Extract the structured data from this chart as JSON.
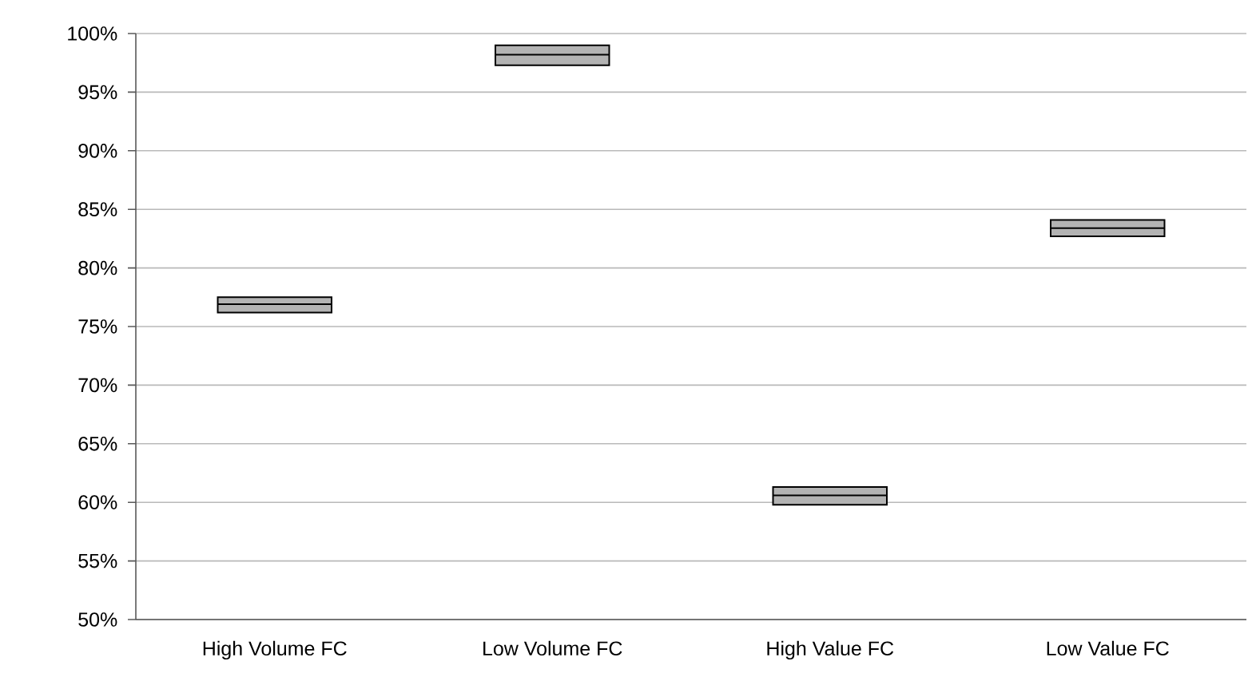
{
  "chart_data": {
    "type": "box",
    "categories": [
      "High Volume FC",
      "Low Volume FC",
      "High Value FC",
      "Low Value FC"
    ],
    "boxes": [
      {
        "low": 76.2,
        "q1": 76.2,
        "median": 76.9,
        "q3": 77.5,
        "high": 77.5
      },
      {
        "low": 97.3,
        "q1": 97.3,
        "median": 98.2,
        "q3": 99.0,
        "high": 99.0
      },
      {
        "low": 59.8,
        "q1": 59.8,
        "median": 60.6,
        "q3": 61.3,
        "high": 61.3
      },
      {
        "low": 82.7,
        "q1": 82.7,
        "median": 83.4,
        "q3": 84.1,
        "high": 84.1
      }
    ],
    "color": "#b3b3b3",
    "ylim": [
      50,
      100
    ],
    "yticks": [
      {
        "value": 50,
        "label": "50%"
      },
      {
        "value": 55,
        "label": "55%"
      },
      {
        "value": 60,
        "label": "60%"
      },
      {
        "value": 65,
        "label": "65%"
      },
      {
        "value": 70,
        "label": "70%"
      },
      {
        "value": 75,
        "label": "75%"
      },
      {
        "value": 80,
        "label": "80%"
      },
      {
        "value": 85,
        "label": "85%"
      },
      {
        "value": 90,
        "label": "90%"
      },
      {
        "value": 95,
        "label": "95%"
      },
      {
        "value": 100,
        "label": "100%"
      }
    ],
    "grid": "y"
  }
}
